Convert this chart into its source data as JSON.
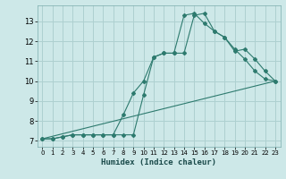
{
  "xlabel": "Humidex (Indice chaleur)",
  "background_color": "#cde8e8",
  "grid_color": "#aed0d0",
  "line_color": "#2d7a6e",
  "xlim": [
    -0.5,
    23.5
  ],
  "ylim": [
    6.7,
    13.8
  ],
  "yticks": [
    7,
    8,
    9,
    10,
    11,
    12,
    13
  ],
  "xticks": [
    0,
    1,
    2,
    3,
    4,
    5,
    6,
    7,
    8,
    9,
    10,
    11,
    12,
    13,
    14,
    15,
    16,
    17,
    18,
    19,
    20,
    21,
    22,
    23
  ],
  "series1_x": [
    0,
    1,
    2,
    3,
    4,
    5,
    6,
    7,
    8,
    9,
    10,
    11,
    12,
    13,
    14,
    15,
    16,
    17,
    18,
    19,
    20,
    21,
    22,
    23
  ],
  "series1_y": [
    7.1,
    7.1,
    7.2,
    7.3,
    7.3,
    7.3,
    7.3,
    7.3,
    7.3,
    7.3,
    9.3,
    11.2,
    11.4,
    11.4,
    13.3,
    13.4,
    12.9,
    12.5,
    12.2,
    11.6,
    11.1,
    10.5,
    10.1,
    10.0
  ],
  "series2_x": [
    0,
    1,
    2,
    3,
    4,
    5,
    6,
    7,
    8,
    9,
    10,
    11,
    12,
    13,
    14,
    15,
    16,
    17,
    18,
    19,
    20,
    21,
    22,
    23
  ],
  "series2_y": [
    7.1,
    7.1,
    7.2,
    7.3,
    7.3,
    7.3,
    7.3,
    7.3,
    8.3,
    9.4,
    10.0,
    11.2,
    11.4,
    11.4,
    11.4,
    13.3,
    13.4,
    12.5,
    12.2,
    11.5,
    11.6,
    11.1,
    10.5,
    10.0
  ],
  "series3_x": [
    0,
    23
  ],
  "series3_y": [
    7.1,
    10.0
  ]
}
